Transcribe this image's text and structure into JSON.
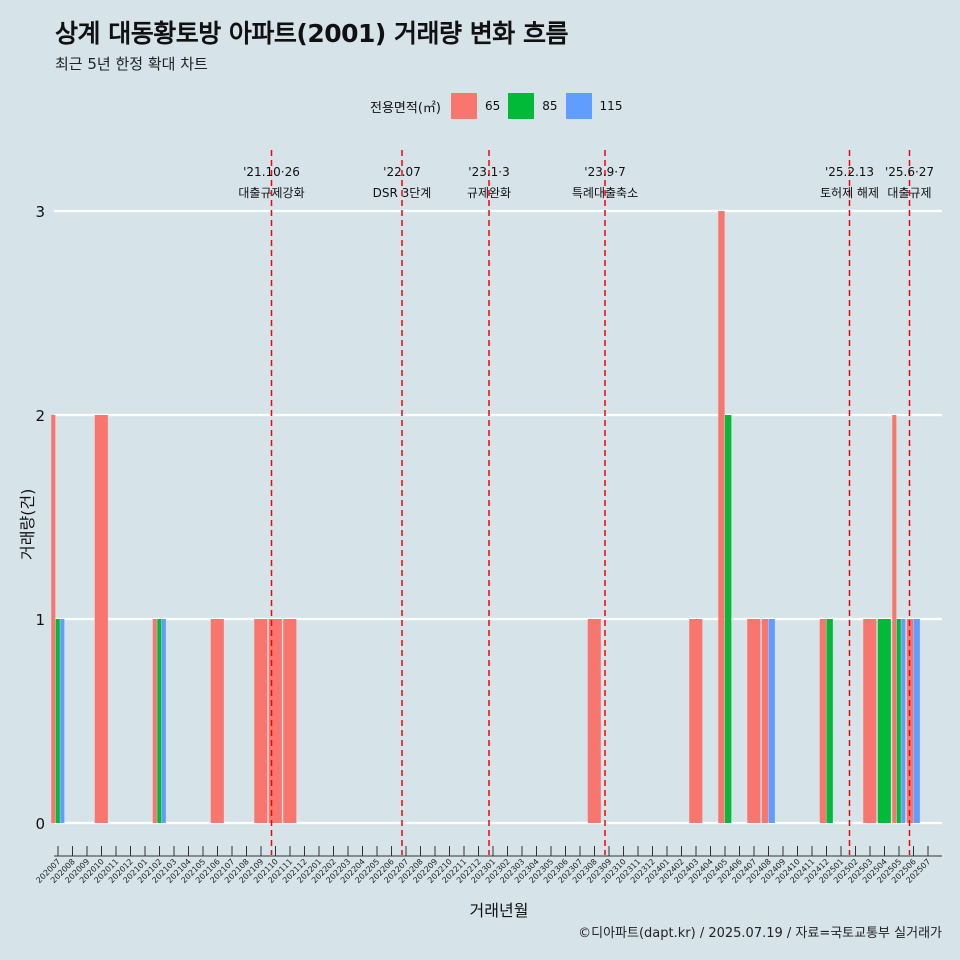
{
  "title": "상계 대동황토방 아파트(2001) 거래량 변화 흐름",
  "subtitle": "최근 5년 한정 확대 차트",
  "caption": "©디아파트(dapt.kr) / 2025.07.19 / 자료=국토교통부 실거래가",
  "legend": {
    "title": "전용면적(㎡)",
    "items": [
      {
        "label": "65",
        "color": "#f8766d"
      },
      {
        "label": "85",
        "color": "#00ba38"
      },
      {
        "label": "115",
        "color": "#619cff"
      }
    ]
  },
  "chart_data": {
    "type": "bar",
    "title": "상계 대동황토방 아파트(2001) 거래량 변화 흐름",
    "subtitle": "최근 5년 한정 확대 차트",
    "xlabel": "거래년월",
    "ylabel": "거래량(건)",
    "ylim": [
      0,
      3
    ],
    "yticks": [
      0,
      1,
      2,
      3
    ],
    "grid": true,
    "legend_position": "top",
    "categories": [
      "202007",
      "202008",
      "202009",
      "202010",
      "202011",
      "202012",
      "202101",
      "202102",
      "202103",
      "202104",
      "202105",
      "202106",
      "202107",
      "202108",
      "202109",
      "202110",
      "202111",
      "202112",
      "202201",
      "202202",
      "202203",
      "202204",
      "202205",
      "202206",
      "202207",
      "202208",
      "202209",
      "202210",
      "202211",
      "202212",
      "202301",
      "202302",
      "202303",
      "202304",
      "202305",
      "202306",
      "202307",
      "202308",
      "202309",
      "202310",
      "202311",
      "202312",
      "202401",
      "202402",
      "202403",
      "202404",
      "202405",
      "202406",
      "202407",
      "202408",
      "202409",
      "202410",
      "202411",
      "202412",
      "202501",
      "202502",
      "202503",
      "202504",
      "202505",
      "202506",
      "202507"
    ],
    "series": [
      {
        "name": "65",
        "color": "#f8766d",
        "points": [
          {
            "x": "202007",
            "y": 2
          },
          {
            "x": "202010",
            "y": 2
          },
          {
            "x": "202102",
            "y": 1
          },
          {
            "x": "202106",
            "y": 1
          },
          {
            "x": "202109",
            "y": 1
          },
          {
            "x": "202110",
            "y": 1
          },
          {
            "x": "202111",
            "y": 1
          },
          {
            "x": "202308",
            "y": 1
          },
          {
            "x": "202403",
            "y": 1
          },
          {
            "x": "202405",
            "y": 3
          },
          {
            "x": "202407",
            "y": 1
          },
          {
            "x": "202408",
            "y": 1
          },
          {
            "x": "202412",
            "y": 1
          },
          {
            "x": "202503",
            "y": 1
          },
          {
            "x": "202505",
            "y": 2
          },
          {
            "x": "202506",
            "y": 1
          }
        ]
      },
      {
        "name": "85",
        "color": "#00ba38",
        "points": [
          {
            "x": "202007",
            "y": 1
          },
          {
            "x": "202102",
            "y": 1
          },
          {
            "x": "202405",
            "y": 2
          },
          {
            "x": "202412",
            "y": 1
          },
          {
            "x": "202504",
            "y": 1
          },
          {
            "x": "202505",
            "y": 1
          }
        ]
      },
      {
        "name": "115",
        "color": "#619cff",
        "points": [
          {
            "x": "202007",
            "y": 1
          },
          {
            "x": "202102",
            "y": 1
          },
          {
            "x": "202408",
            "y": 1
          },
          {
            "x": "202505",
            "y": 1
          },
          {
            "x": "202506",
            "y": 1
          }
        ]
      }
    ],
    "annotations": [
      {
        "x": "202110",
        "date": "'21.10·26",
        "label": "대출규제강화"
      },
      {
        "x": "202207",
        "date": "'22.07",
        "label": "DSR 3단계"
      },
      {
        "x": "202301",
        "date": "'23.1·3",
        "label": "규제완화"
      },
      {
        "x": "202309",
        "date": "'23.9·7",
        "label": "특례대출축소"
      },
      {
        "x": "202502",
        "date": "'25.2.13",
        "label": "토허제 해제"
      },
      {
        "x": "202506",
        "date": "'25.6·27",
        "label": "대출규제"
      }
    ]
  }
}
